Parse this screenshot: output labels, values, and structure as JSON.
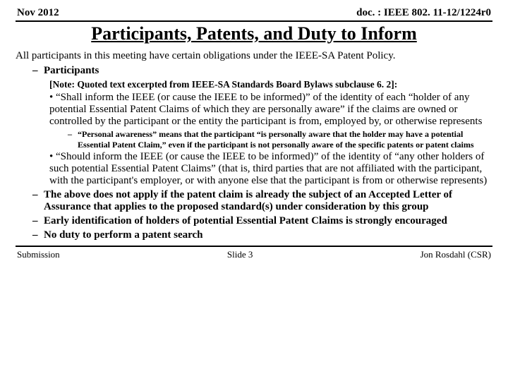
{
  "header": {
    "left": "Nov 2012",
    "right": "doc. : IEEE 802. 11-12/1224r0"
  },
  "title": "Participants, Patents, and Duty to Inform",
  "intro": "All participants in this meeting have certain obligations under the IEEE-SA Patent Policy.",
  "l1": {
    "participants_label": "Participants",
    "note": "[Note: Quoted text excerpted from IEEE-SA Standards Board Bylaws subclause 6. 2]:",
    "b1": "“Shall inform the IEEE (or cause the IEEE to be informed)” of the identity of each “holder of any potential Essential Patent Claims of which they are personally aware” if the claims are owned or controlled by the participant or the entity the participant is from, employed by, or otherwise represents",
    "b1_sub": "“Personal awareness” means that the participant “is personally aware that the holder may have a potential Essential Patent Claim,” even if the participant is not personally aware of the specific patents or patent claims",
    "b2": "“Should inform the IEEE (or cause the IEEE to be informed)” of the identity of “any other holders of such potential Essential Patent Claims” (that is, third parties that are not affiliated with the participant, with the participant's employer, or with anyone else that the participant is from or otherwise represents)",
    "item2": "The above does not apply if the patent claim is already the subject of an Accepted Letter of Assurance that applies to the proposed standard(s) under consideration by this group",
    "item3": "Early identification of holders of potential Essential Patent Claims is strongly encouraged",
    "item4": "No duty to perform a patent search"
  },
  "footer": {
    "left": "Submission",
    "center": "Slide 3",
    "right": "Jon Rosdahl (CSR)"
  }
}
